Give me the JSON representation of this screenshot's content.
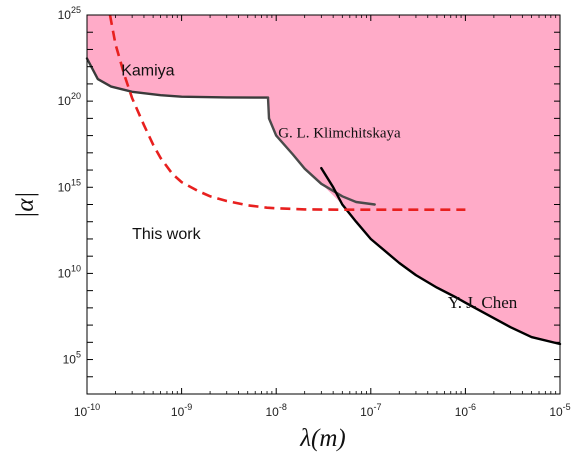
{
  "chart_data": {
    "type": "line",
    "xlabel": "λ(m)",
    "ylabel": "|α|",
    "x_scale": "log",
    "y_scale": "log",
    "xlim": [
      1e-10,
      1e-05
    ],
    "ylim": [
      1000.0,
      1e+25
    ],
    "x_ticks": [
      {
        "value": 1e-10,
        "base": "10",
        "exp": "-10"
      },
      {
        "value": 1e-09,
        "base": "10",
        "exp": "-9"
      },
      {
        "value": 1e-08,
        "base": "10",
        "exp": "-8"
      },
      {
        "value": 1e-07,
        "base": "10",
        "exp": "-7"
      },
      {
        "value": 1e-06,
        "base": "10",
        "exp": "-6"
      },
      {
        "value": 1e-05,
        "base": "10",
        "exp": "-5"
      }
    ],
    "y_ticks": [
      {
        "value": 100000.0,
        "base": "10",
        "exp": "5"
      },
      {
        "value": 10000000000.0,
        "base": "10",
        "exp": "10"
      },
      {
        "value": 1000000000000000.0,
        "base": "10",
        "exp": "15"
      },
      {
        "value": 1e+20,
        "base": "10",
        "exp": "20"
      },
      {
        "value": 1e+25,
        "base": "10",
        "exp": "25"
      }
    ],
    "excluded_region_color": "#ffabc8",
    "series": [
      {
        "name": "Kamiya",
        "color": "#3a3a3a",
        "style": "solid",
        "points": [
          [
            1e-10,
            3e+22
          ],
          [
            1.3e-10,
            1.9e+21
          ],
          [
            1.8e-10,
            7e+20
          ],
          [
            3e-10,
            3.5e+20
          ],
          [
            6e-10,
            2.2e+20
          ],
          [
            1e-09,
            1.8e+20
          ],
          [
            3e-09,
            1.65e+20
          ],
          [
            8.2e-09,
            1.6e+20
          ]
        ]
      },
      {
        "name": "G. L. Klimchitskaya",
        "color": "#4a4a4a",
        "style": "solid",
        "points": [
          [
            8.2e-09,
            1.6e+20
          ],
          [
            8.4e-09,
            1e+19
          ],
          [
            1e-08,
            1e+18
          ],
          [
            1.5e-08,
            8e+16
          ],
          [
            2e-08,
            1.2e+16
          ],
          [
            3e-08,
            1600000000000000.0
          ],
          [
            5e-08,
            300000000000000.0
          ],
          [
            7e-08,
            140000000000000.0
          ],
          [
            1.1e-07,
            100000000000000.0
          ]
        ]
      },
      {
        "name": "Y. J. Chen",
        "color": "#000000",
        "style": "solid",
        "points": [
          [
            3e-08,
            1.3e+16
          ],
          [
            4e-08,
            1000000000000000.0
          ],
          [
            5e-08,
            100000000000000.0
          ],
          [
            7e-08,
            10000000000000.0
          ],
          [
            1e-07,
            1000000000000.0
          ],
          [
            1.5e-07,
            150000000000.0
          ],
          [
            2e-07,
            40000000000.0
          ],
          [
            3e-07,
            8000000000.0
          ],
          [
            5e-07,
            1500000000.0
          ],
          [
            8e-07,
            400000000.0
          ],
          [
            1e-06,
            200000000.0
          ],
          [
            2e-06,
            25000000.0
          ],
          [
            3e-06,
            7500000.0
          ],
          [
            5e-06,
            2000000.0
          ],
          [
            1e-05,
            800000.0
          ]
        ]
      },
      {
        "name": "This work",
        "color": "#e8201f",
        "style": "dashed",
        "points": [
          [
            1.75e-10,
            1e+25
          ],
          [
            2e-10,
            2e+23
          ],
          [
            2.5e-10,
            3e+21
          ],
          [
            3e-10,
            1.5e+20
          ],
          [
            4e-10,
            4e+18
          ],
          [
            5e-10,
            3e+17
          ],
          [
            6e-10,
            5e+16
          ],
          [
            8e-10,
            6000000000000000.0
          ],
          [
            1e-09,
            2000000000000000.0
          ],
          [
            1.5e-09,
            600000000000000.0
          ],
          [
            2e-09,
            300000000000000.0
          ],
          [
            3e-09,
            160000000000000.0
          ],
          [
            5e-09,
            90000000000000.0
          ],
          [
            8e-09,
            65000000000000.0
          ],
          [
            1e-08,
            60000000000000.0
          ],
          [
            2e-08,
            52000000000000.0
          ],
          [
            5e-08,
            50000000000000.0
          ],
          [
            1e-07,
            50000000000000.0
          ],
          [
            1e-06,
            50000000000000.0
          ]
        ]
      }
    ],
    "annotations": [
      {
        "text": "Kamiya",
        "x": 2.3e-10,
        "y": 3e+21,
        "font": "sans"
      },
      {
        "text": "G. L. Klimchitskaya",
        "x": 1.05e-08,
        "y": 8e+17,
        "font": "serif"
      },
      {
        "text": "This work",
        "x": 3e-10,
        "y": 1000000000000.0,
        "font": "sans"
      },
      {
        "text": "Y. J. Chen",
        "x": 6.5e-07,
        "y": 100000000.0,
        "font": "serif"
      }
    ]
  }
}
